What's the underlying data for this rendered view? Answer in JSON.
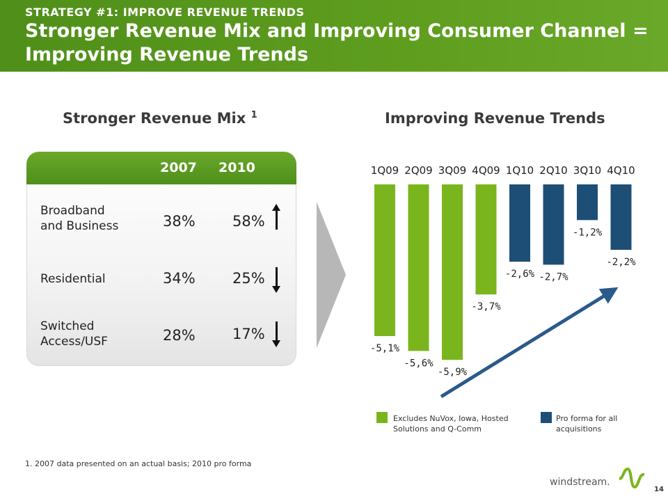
{
  "header": {
    "kicker": "STRATEGY #1: IMPROVE REVENUE TRENDS",
    "title": "Stronger Revenue Mix and Improving Consumer Channel = Improving Revenue Trends"
  },
  "left_section": {
    "title": "Stronger Revenue Mix",
    "superscript": "1",
    "years": [
      "2007",
      "2010"
    ],
    "rows": [
      {
        "label_line1": "Broadband",
        "label_line2": "and Business",
        "v2007": "38%",
        "v2010": "58%",
        "trend": "up"
      },
      {
        "label_line1": "Residential",
        "label_line2": "",
        "v2007": "34%",
        "v2010": "25%",
        "trend": "down"
      },
      {
        "label_line1": "Switched",
        "label_line2": "Access/USF",
        "v2007": "28%",
        "v2010": "17%",
        "trend": "down"
      }
    ]
  },
  "chart_data": {
    "type": "bar",
    "title": "Improving Revenue Trends",
    "categories": [
      "1Q09",
      "2Q09",
      "3Q09",
      "4Q09",
      "1Q10",
      "2Q10",
      "3Q10",
      "4Q10"
    ],
    "values": [
      -5.1,
      -5.6,
      -5.9,
      -3.7,
      -2.6,
      -2.7,
      -1.2,
      -2.2
    ],
    "value_labels": [
      "-5,1%",
      "-5,6%",
      "-5,9%",
      "-3,7%",
      "-2,6%",
      "-2,7%",
      "-1,2%",
      "-2,2%"
    ],
    "bar_groups": [
      "green",
      "green",
      "green",
      "green",
      "blue",
      "blue",
      "blue",
      "blue"
    ],
    "colors": {
      "green": "#7ab51d",
      "blue": "#1d4f76",
      "arrow": "#2a5a8a"
    },
    "ylim": [
      -6.2,
      0
    ],
    "grid": false,
    "legend": {
      "placement": "bottom",
      "entries": [
        {
          "color": "#7ab51d",
          "line1": "Excludes NuVox, Iowa, Hosted",
          "line2": "Solutions and Q-Comm"
        },
        {
          "color": "#1d4f76",
          "line1": "Pro forma for all",
          "line2": "acquisitions"
        }
      ]
    }
  },
  "footnote": "1.  2007 data presented  on an actual basis; 2010 pro forma",
  "footer": {
    "logo_text": "windstream.",
    "page_number": "14"
  }
}
